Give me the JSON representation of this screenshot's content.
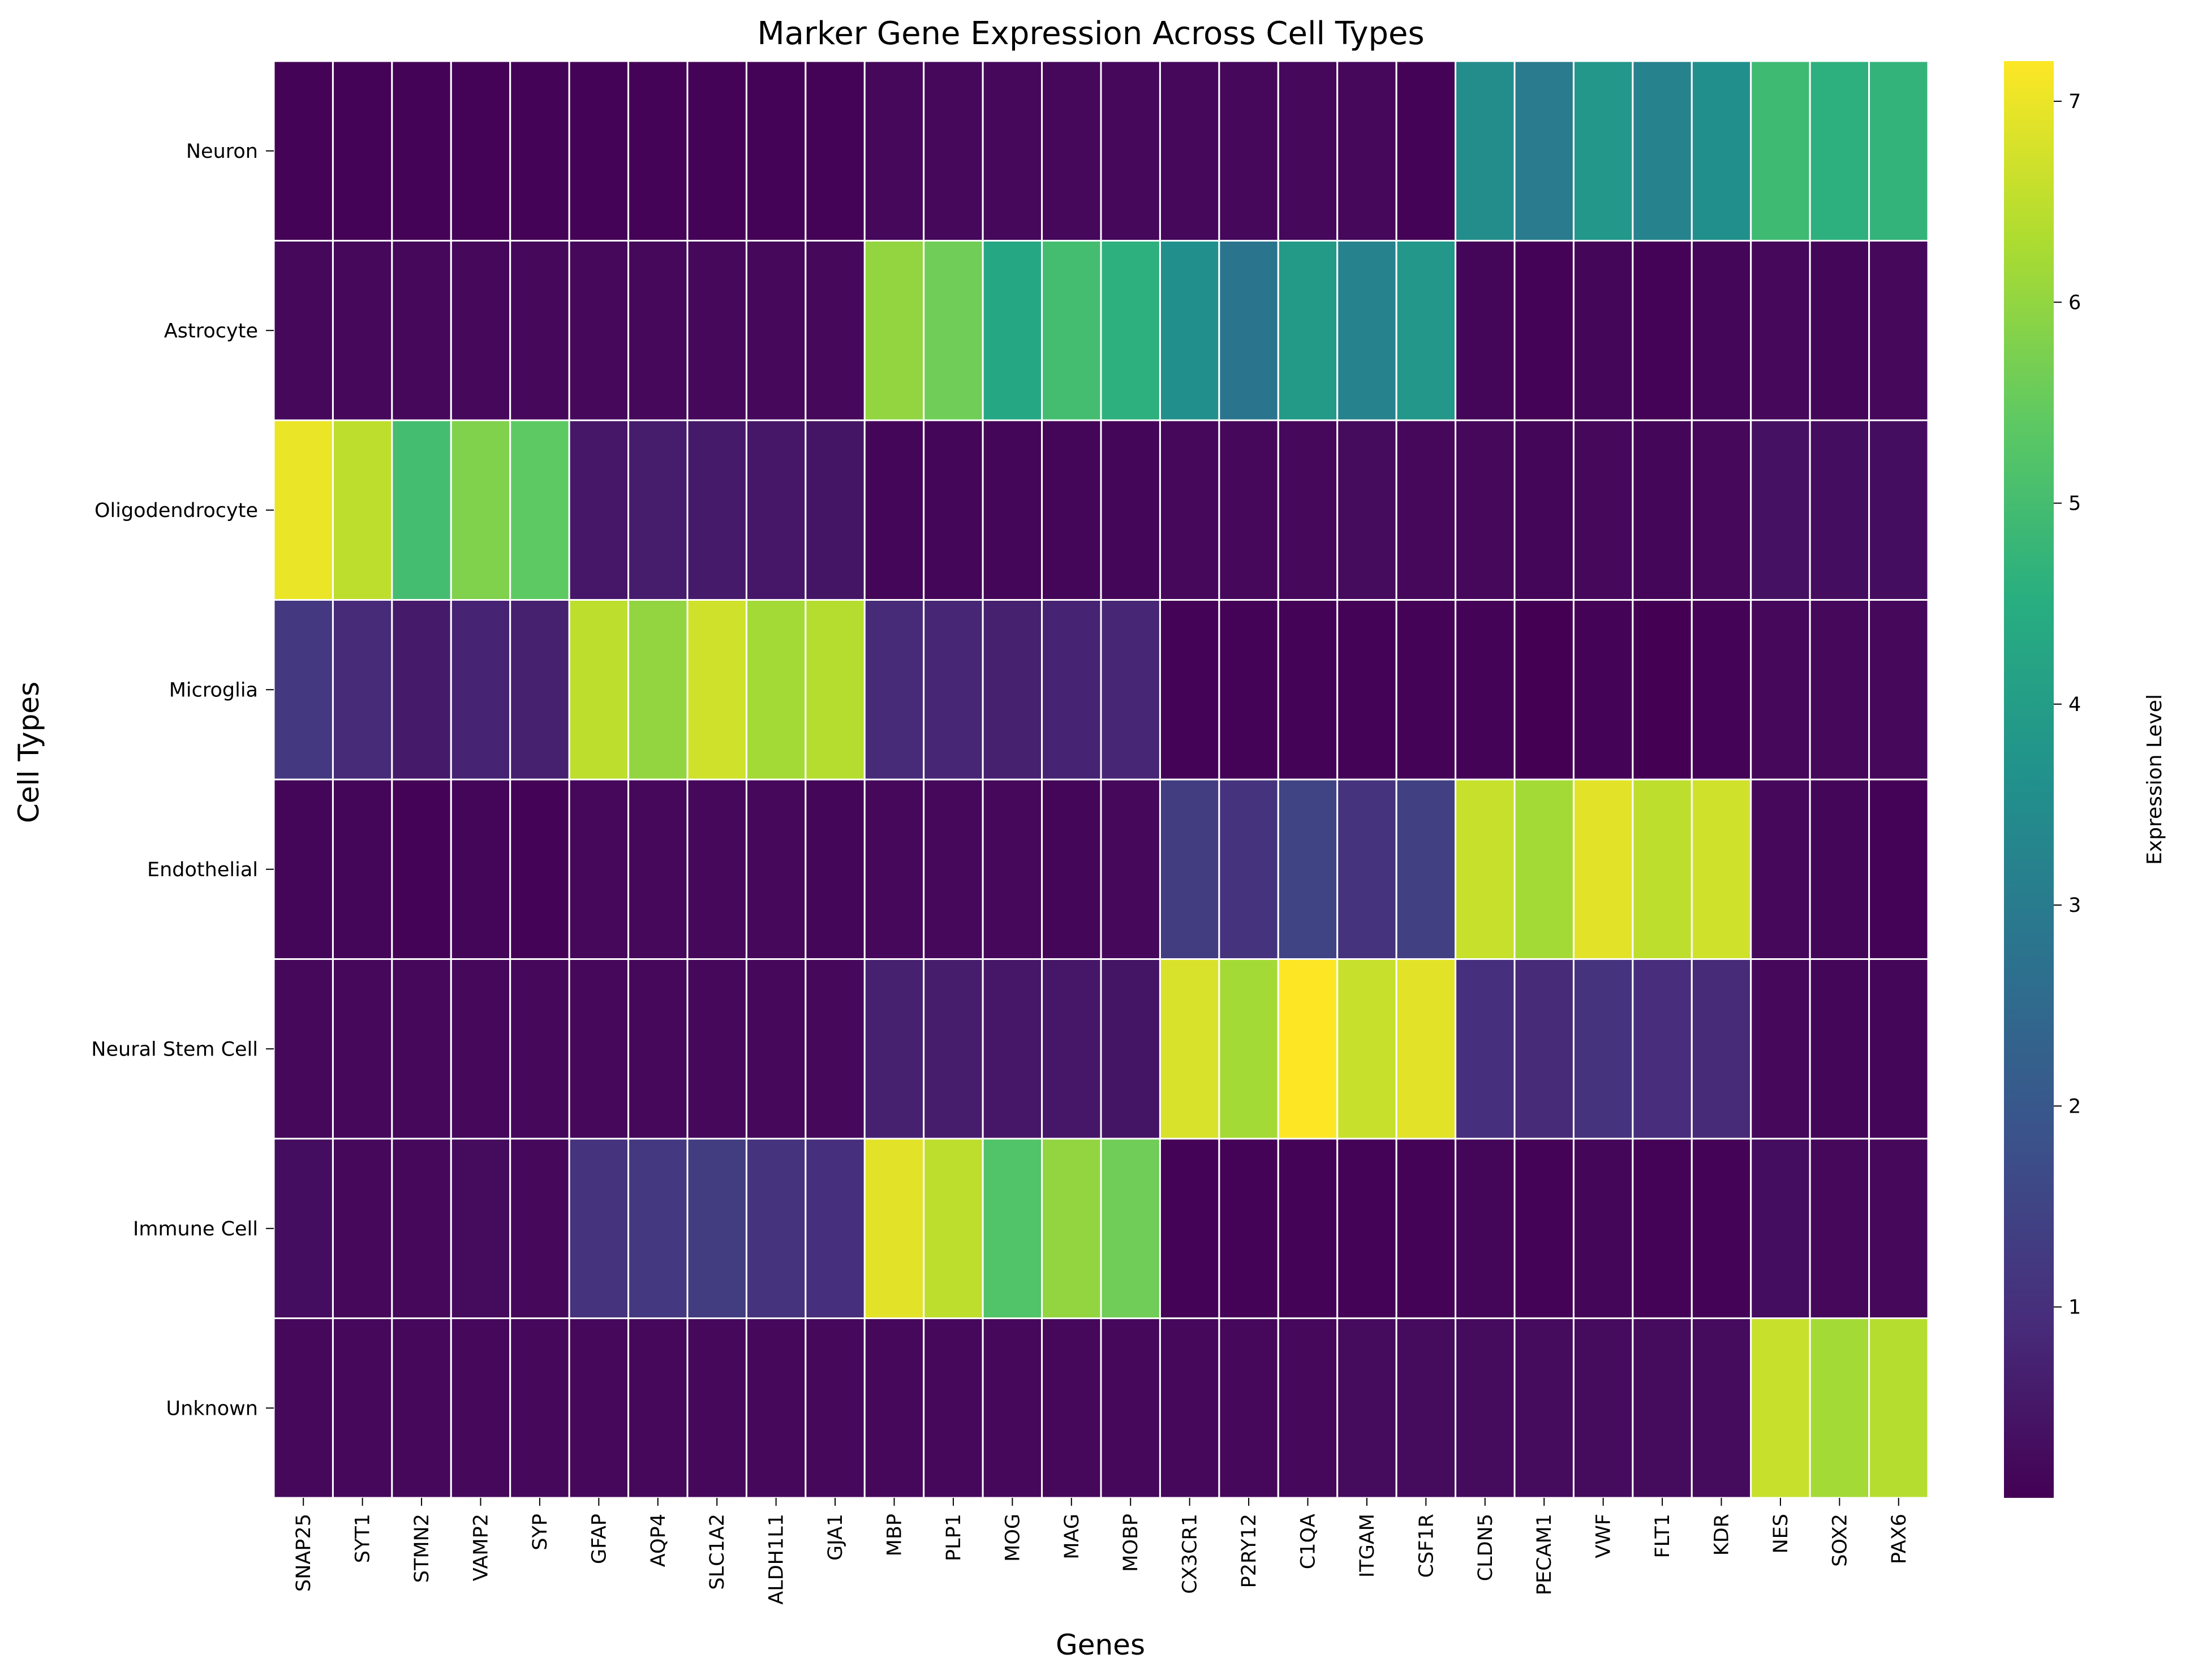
{
  "chart_data": {
    "type": "heatmap",
    "title": "Marker Gene Expression Across Cell Types",
    "xlabel": "Genes",
    "ylabel": "Cell Types",
    "colorbar_label": "Expression Level",
    "colormap": "viridis",
    "colorbar_range": [
      0.05,
      7.2
    ],
    "colorbar_ticks": [
      1,
      2,
      3,
      4,
      5,
      6,
      7
    ],
    "grid": true,
    "x_categories": [
      "SNAP25",
      "SYT1",
      "STMN2",
      "VAMP2",
      "SYP",
      "GFAP",
      "AQP4",
      "SLC1A2",
      "ALDH1L1",
      "GJA1",
      "MBP",
      "PLP1",
      "MOG",
      "MAG",
      "MOBP",
      "CX3CR1",
      "P2RY12",
      "C1QA",
      "ITGAM",
      "CSF1R",
      "CLDN5",
      "PECAM1",
      "VWF",
      "FLT1",
      "KDR",
      "NES",
      "SOX2",
      "PAX6"
    ],
    "y_categories": [
      "Neuron",
      "Astrocyte",
      "Oligodendrocyte",
      "Microglia",
      "Endothelial",
      "Neural Stem Cell",
      "Immune Cell",
      "Unknown"
    ],
    "values": [
      [
        0.1,
        0.1,
        0.1,
        0.1,
        0.1,
        0.1,
        0.1,
        0.1,
        0.1,
        0.1,
        0.2,
        0.2,
        0.2,
        0.2,
        0.2,
        0.2,
        0.2,
        0.2,
        0.2,
        0.1,
        3.5,
        3.0,
        3.8,
        3.2,
        3.6,
        4.9,
        4.6,
        4.7
      ],
      [
        0.2,
        0.2,
        0.2,
        0.2,
        0.2,
        0.2,
        0.2,
        0.2,
        0.2,
        0.2,
        6.0,
        5.6,
        4.3,
        5.0,
        4.6,
        3.6,
        2.8,
        3.9,
        3.2,
        3.8,
        0.15,
        0.1,
        0.15,
        0.1,
        0.15,
        0.2,
        0.15,
        0.2
      ],
      [
        7.0,
        6.5,
        5.0,
        5.8,
        5.4,
        0.5,
        0.6,
        0.55,
        0.5,
        0.45,
        0.15,
        0.15,
        0.15,
        0.15,
        0.15,
        0.2,
        0.2,
        0.2,
        0.25,
        0.2,
        0.2,
        0.15,
        0.2,
        0.15,
        0.2,
        0.4,
        0.3,
        0.3
      ],
      [
        1.2,
        0.9,
        0.55,
        0.75,
        0.7,
        6.5,
        6.0,
        6.7,
        6.2,
        6.4,
        0.9,
        0.8,
        0.7,
        0.75,
        0.8,
        0.1,
        0.1,
        0.1,
        0.1,
        0.1,
        0.1,
        0.05,
        0.1,
        0.05,
        0.1,
        0.2,
        0.2,
        0.2
      ],
      [
        0.15,
        0.15,
        0.1,
        0.15,
        0.1,
        0.2,
        0.2,
        0.2,
        0.2,
        0.15,
        0.2,
        0.2,
        0.2,
        0.15,
        0.2,
        1.3,
        1.1,
        1.5,
        1.1,
        1.4,
        6.6,
        6.2,
        6.9,
        6.5,
        6.7,
        0.2,
        0.15,
        0.1
      ],
      [
        0.2,
        0.2,
        0.2,
        0.2,
        0.2,
        0.2,
        0.2,
        0.2,
        0.2,
        0.2,
        0.7,
        0.6,
        0.5,
        0.5,
        0.45,
        6.8,
        6.2,
        7.2,
        6.6,
        6.9,
        1.0,
        0.9,
        1.1,
        0.95,
        0.9,
        0.2,
        0.15,
        0.15
      ],
      [
        0.3,
        0.2,
        0.2,
        0.25,
        0.2,
        1.1,
        1.2,
        1.3,
        1.1,
        1.0,
        6.9,
        6.5,
        5.2,
        6.0,
        5.6,
        0.1,
        0.1,
        0.1,
        0.1,
        0.1,
        0.15,
        0.1,
        0.15,
        0.1,
        0.1,
        0.3,
        0.2,
        0.2
      ],
      [
        0.2,
        0.2,
        0.2,
        0.2,
        0.2,
        0.2,
        0.2,
        0.2,
        0.2,
        0.2,
        0.2,
        0.2,
        0.2,
        0.2,
        0.2,
        0.2,
        0.2,
        0.2,
        0.25,
        0.25,
        0.25,
        0.25,
        0.25,
        0.25,
        0.25,
        6.6,
        6.2,
        6.4
      ]
    ]
  }
}
